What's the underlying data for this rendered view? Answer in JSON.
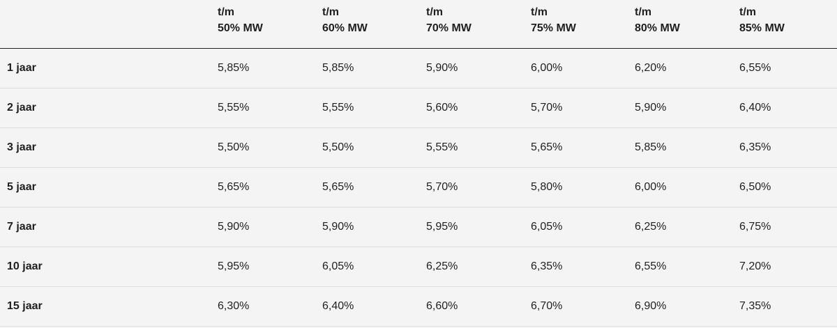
{
  "table": {
    "columns": [
      {
        "line1": "t/m",
        "line2": "50% MW"
      },
      {
        "line1": "t/m",
        "line2": "60% MW"
      },
      {
        "line1": "t/m",
        "line2": "70% MW"
      },
      {
        "line1": "t/m",
        "line2": "75% MW"
      },
      {
        "line1": "t/m",
        "line2": "80% MW"
      },
      {
        "line1": "t/m",
        "line2": "85% MW"
      }
    ],
    "rows": [
      {
        "label": "1 jaar",
        "values": [
          "5,85%",
          "5,85%",
          "5,90%",
          "6,00%",
          "6,20%",
          "6,55%"
        ]
      },
      {
        "label": "2 jaar",
        "values": [
          "5,55%",
          "5,55%",
          "5,60%",
          "5,70%",
          "5,90%",
          "6,40%"
        ]
      },
      {
        "label": "3 jaar",
        "values": [
          "5,50%",
          "5,50%",
          "5,55%",
          "5,65%",
          "5,85%",
          "6,35%"
        ]
      },
      {
        "label": "5 jaar",
        "values": [
          "5,65%",
          "5,65%",
          "5,70%",
          "5,80%",
          "6,00%",
          "6,50%"
        ]
      },
      {
        "label": "7 jaar",
        "values": [
          "5,90%",
          "5,90%",
          "5,95%",
          "6,05%",
          "6,25%",
          "6,75%"
        ]
      },
      {
        "label": "10 jaar",
        "values": [
          "5,95%",
          "6,05%",
          "6,25%",
          "6,35%",
          "6,55%",
          "7,20%"
        ]
      },
      {
        "label": "15 jaar",
        "values": [
          "6,30%",
          "6,40%",
          "6,60%",
          "6,70%",
          "6,90%",
          "7,35%"
        ]
      }
    ]
  }
}
